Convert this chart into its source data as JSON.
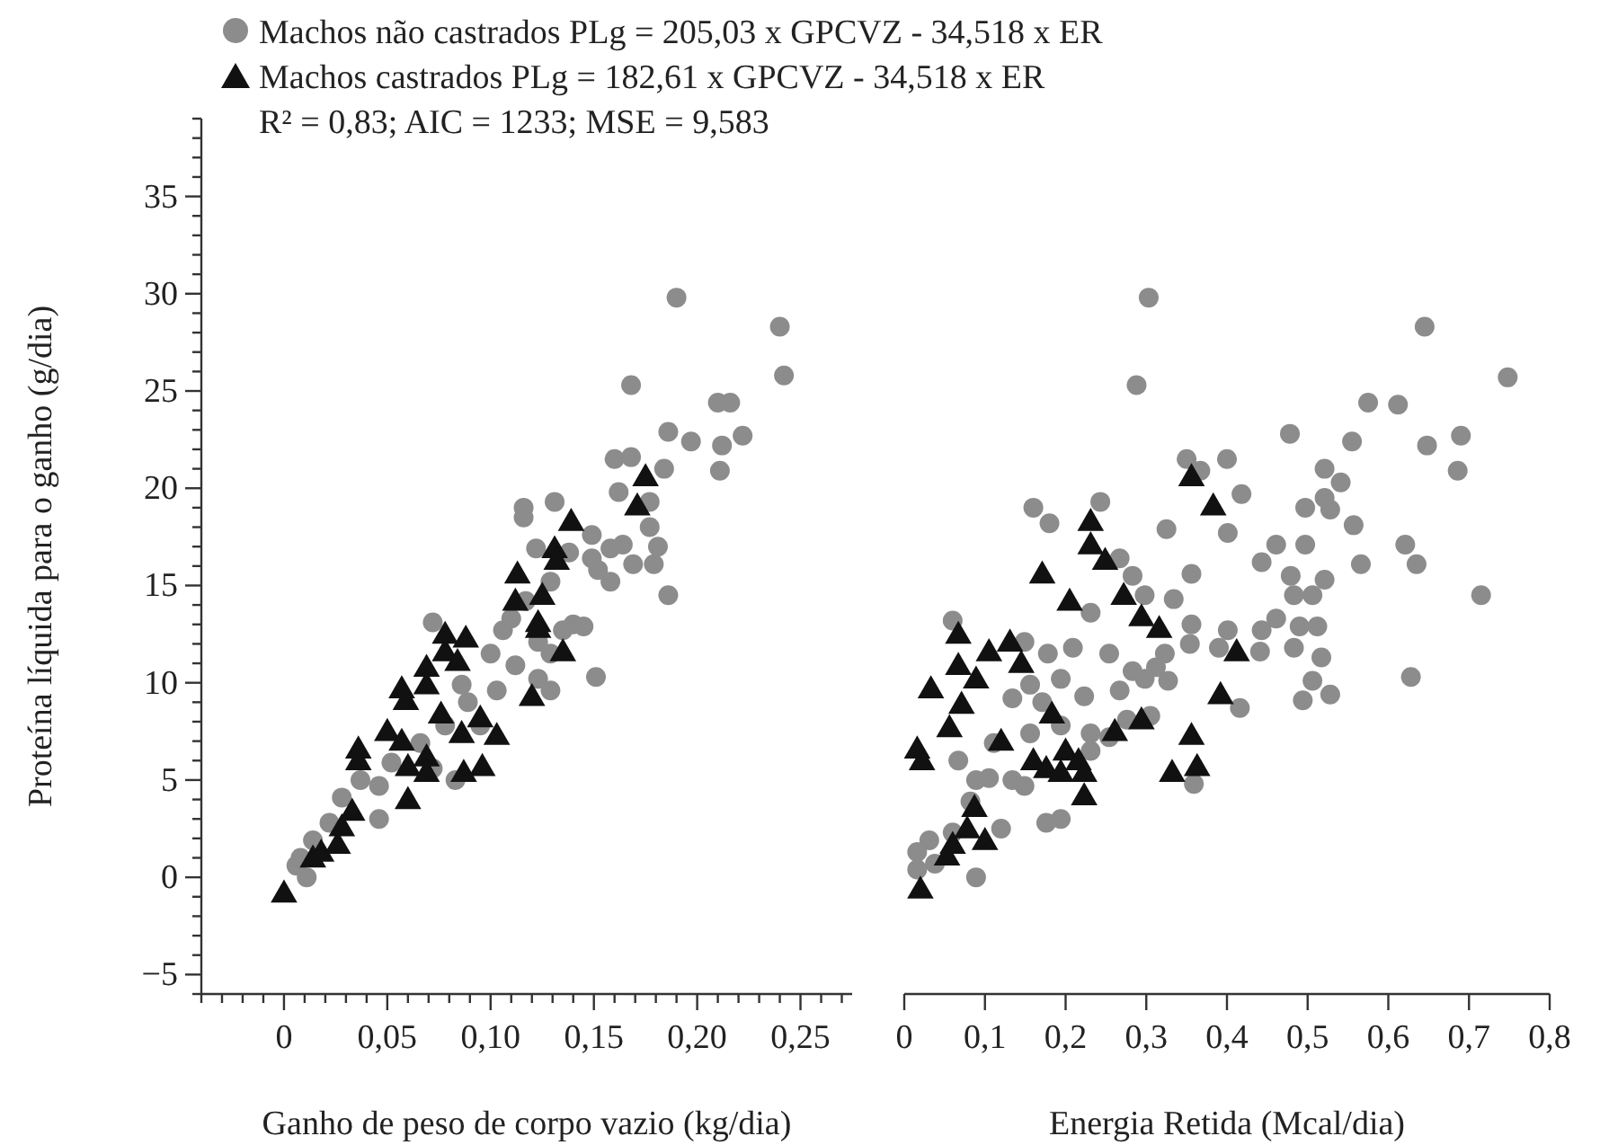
{
  "chart_data": [
    {
      "type": "scatter",
      "xlabel": "Ganho de peso de corpo vazio (kg/dia)",
      "ylabel": "Proteína líquida para o ganho (g/dia)",
      "legend": "top",
      "annotations": [
        "R² = 0,83; AIC = 1233; MSE = 9,583"
      ],
      "xlim": [
        -0.04,
        0.275
      ],
      "xticks": [
        {
          "value": -0.04,
          "label": null
        },
        {
          "value": -0.03,
          "label": null
        },
        {
          "value": -0.02,
          "label": null
        },
        {
          "value": -0.01,
          "label": null
        },
        0,
        {
          "value": 0.01,
          "label": null
        },
        {
          "value": 0.02,
          "label": null
        },
        {
          "value": 0.03,
          "label": null
        },
        {
          "value": 0.04,
          "label": null
        },
        {
          "value": 0.05,
          "label": "0,05"
        },
        {
          "value": 0.06,
          "label": null
        },
        {
          "value": 0.07,
          "label": null
        },
        {
          "value": 0.08,
          "label": null
        },
        {
          "value": 0.09,
          "label": null
        },
        {
          "value": 0.1,
          "label": "0,10"
        },
        {
          "value": 0.11,
          "label": null
        },
        {
          "value": 0.12,
          "label": null
        },
        {
          "value": 0.13,
          "label": null
        },
        {
          "value": 0.14,
          "label": null
        },
        {
          "value": 0.15,
          "label": "0,15"
        },
        {
          "value": 0.16,
          "label": null
        },
        {
          "value": 0.17,
          "label": null
        },
        {
          "value": 0.18,
          "label": null
        },
        {
          "value": 0.19,
          "label": null
        },
        {
          "value": 0.2,
          "label": "0,20"
        },
        {
          "value": 0.21,
          "label": null
        },
        {
          "value": 0.22,
          "label": null
        },
        {
          "value": 0.23,
          "label": null
        },
        {
          "value": 0.24,
          "label": null
        },
        {
          "value": 0.25,
          "label": "0,25"
        },
        {
          "value": 0.26,
          "label": null
        },
        {
          "value": 0.27,
          "label": null
        }
      ],
      "ylim": [
        -6,
        39
      ],
      "yticks": [
        {
          "value": -6,
          "label": null
        },
        {
          "value": -5,
          "label": "−5"
        },
        {
          "value": -4,
          "label": null
        },
        {
          "value": -3,
          "label": null
        },
        {
          "value": -2,
          "label": null
        },
        {
          "value": -1,
          "label": null
        },
        0,
        {
          "value": 1,
          "label": null
        },
        {
          "value": 2,
          "label": null
        },
        {
          "value": 3,
          "label": null
        },
        {
          "value": 4,
          "label": null
        },
        5,
        {
          "value": 6,
          "label": null
        },
        {
          "value": 7,
          "label": null
        },
        {
          "value": 8,
          "label": null
        },
        {
          "value": 9,
          "label": null
        },
        10,
        {
          "value": 11,
          "label": null
        },
        {
          "value": 12,
          "label": null
        },
        {
          "value": 13,
          "label": null
        },
        {
          "value": 14,
          "label": null
        },
        15,
        {
          "value": 16,
          "label": null
        },
        {
          "value": 17,
          "label": null
        },
        {
          "value": 18,
          "label": null
        },
        {
          "value": 19,
          "label": null
        },
        20,
        {
          "value": 21,
          "label": null
        },
        {
          "value": 22,
          "label": null
        },
        {
          "value": 23,
          "label": null
        },
        {
          "value": 24,
          "label": null
        },
        25,
        {
          "value": 26,
          "label": null
        },
        {
          "value": 27,
          "label": null
        },
        {
          "value": 28,
          "label": null
        },
        {
          "value": 29,
          "label": null
        },
        30,
        {
          "value": 31,
          "label": null
        },
        {
          "value": 32,
          "label": null
        },
        {
          "value": 33,
          "label": null
        },
        {
          "value": 34,
          "label": null
        },
        35,
        {
          "value": 36,
          "label": null
        },
        {
          "value": 37,
          "label": null
        },
        {
          "value": 38,
          "label": null
        },
        {
          "value": 39,
          "label": null
        }
      ],
      "series": [
        {
          "name": "Machos não castrados PLg = 205,03 x GPCVZ - 34,518 x ER",
          "color": "#8c8c8c",
          "marker": "circle",
          "x": [
            0.19,
            0.24,
            0.242,
            0.168,
            0.21,
            0.216,
            0.186,
            0.197,
            0.212,
            0.222,
            0.211,
            0.16,
            0.168,
            0.162,
            0.184,
            0.177,
            0.181,
            0.179,
            0.169,
            0.186,
            0.177,
            0.116,
            0.116,
            0.131,
            0.149,
            0.164,
            0.152,
            0.158,
            0.122,
            0.072,
            0.151,
            0.14,
            0.106,
            0.1,
            0.112,
            0.123,
            0.129,
            0.089,
            0.078,
            0.066,
            0.052,
            0.037,
            0.046,
            0.028,
            0.046,
            0.022,
            0.014,
            0.008,
            0.011,
            0.006,
            0.083,
            0.123,
            0.135,
            0.145,
            0.11,
            0.117,
            0.129,
            0.138,
            0.149,
            0.158,
            0.103,
            0.086,
            0.095,
            0.072,
            0.129
          ],
          "values": [
            29.8,
            28.3,
            25.8,
            25.3,
            24.4,
            24.4,
            22.9,
            22.4,
            22.2,
            22.7,
            20.9,
            21.5,
            21.6,
            19.8,
            21.0,
            19.3,
            17.0,
            16.1,
            16.1,
            14.5,
            18.0,
            19.0,
            18.5,
            19.3,
            17.6,
            17.1,
            15.8,
            15.2,
            16.9,
            13.1,
            10.3,
            13.0,
            12.7,
            11.5,
            10.9,
            10.2,
            9.6,
            9.0,
            7.8,
            6.9,
            5.9,
            5.0,
            4.7,
            4.1,
            3.0,
            2.8,
            1.9,
            1.0,
            0.0,
            0.6,
            5.0,
            12.1,
            12.7,
            12.9,
            13.3,
            14.2,
            15.2,
            16.7,
            16.4,
            16.9,
            9.6,
            9.9,
            7.8,
            5.6,
            11.5
          ]
        },
        {
          "name": "Machos castrados PLg = 182,61 x GPCVZ - 34,518 x ER",
          "color": "#111111",
          "marker": "triangle",
          "x": [
            0,
            0.014,
            0.018,
            0.026,
            0.028,
            0.033,
            0.036,
            0.036,
            0.05,
            0.057,
            0.059,
            0.057,
            0.06,
            0.06,
            0.069,
            0.069,
            0.078,
            0.078,
            0.088,
            0.084,
            0.069,
            0.069,
            0.076,
            0.086,
            0.095,
            0.103,
            0.087,
            0.096,
            0.113,
            0.112,
            0.125,
            0.123,
            0.123,
            0.131,
            0.132,
            0.139,
            0.135,
            0.12,
            0.175,
            0.171
          ],
          "values": [
            -0.9,
            0.9,
            1.2,
            1.6,
            2.5,
            3.3,
            6.5,
            5.9,
            7.4,
            9.6,
            9.0,
            6.9,
            5.6,
            3.9,
            10.7,
            9.8,
            12.4,
            11.5,
            12.2,
            11.0,
            6.1,
            5.3,
            8.3,
            7.3,
            8.1,
            7.2,
            5.3,
            5.6,
            15.5,
            14.1,
            14.4,
            13.0,
            12.7,
            16.8,
            16.2,
            18.2,
            11.5,
            9.2,
            20.5,
            19.0
          ]
        }
      ]
    },
    {
      "type": "scatter",
      "xlabel": "Energia Retida (Mcal/dia)",
      "tick_labels": "x",
      "xlim": [
        0,
        0.8
      ],
      "xticks": [
        0,
        {
          "value": 0.1,
          "label": "0,1"
        },
        {
          "value": 0.2,
          "label": "0,2"
        },
        {
          "value": 0.3,
          "label": "0,3"
        },
        {
          "value": 0.4,
          "label": "0,4"
        },
        {
          "value": 0.5,
          "label": "0,5"
        },
        {
          "value": 0.6,
          "label": "0,6"
        },
        {
          "value": 0.7,
          "label": "0,7"
        },
        {
          "value": 0.8,
          "label": "0,8"
        }
      ],
      "ylim": [
        -6,
        35
      ],
      "yticks": [
        -5,
        0,
        5,
        10,
        15,
        20,
        25,
        30,
        35
      ],
      "series": [
        {
          "color": "#8c8c8c",
          "marker": "circle",
          "x": [
            0.303,
            0.288,
            0.645,
            0.748,
            0.575,
            0.612,
            0.478,
            0.555,
            0.648,
            0.69,
            0.686,
            0.35,
            0.4,
            0.367,
            0.521,
            0.541,
            0.521,
            0.497,
            0.528,
            0.418,
            0.16,
            0.18,
            0.243,
            0.325,
            0.401,
            0.557,
            0.461,
            0.497,
            0.621,
            0.635,
            0.566,
            0.443,
            0.356,
            0.715,
            0.479,
            0.521,
            0.483,
            0.506,
            0.461,
            0.49,
            0.512,
            0.443,
            0.483,
            0.517,
            0.441,
            0.628,
            0.506,
            0.528,
            0.494,
            0.416,
            0.401,
            0.39,
            0.334,
            0.356,
            0.354,
            0.323,
            0.312,
            0.298,
            0.327,
            0.267,
            0.283,
            0.254,
            0.283,
            0.298,
            0.267,
            0.231,
            0.209,
            0.178,
            0.194,
            0.156,
            0.134,
            0.171,
            0.223,
            0.194,
            0.156,
            0.231,
            0.231,
            0.254,
            0.276,
            0.305,
            0.06,
            0.067,
            0.111,
            0.105,
            0.089,
            0.134,
            0.149,
            0.082,
            0.12,
            0.176,
            0.194,
            0.06,
            0.031,
            0.016,
            0.038,
            0.089,
            0.016,
            0.359,
            0.149
          ],
          "values": [
            29.8,
            25.3,
            28.3,
            25.7,
            24.4,
            24.3,
            22.8,
            22.4,
            22.2,
            22.7,
            20.9,
            21.5,
            21.5,
            20.9,
            21.0,
            20.3,
            19.5,
            19.0,
            18.9,
            19.7,
            19.0,
            18.2,
            19.3,
            17.9,
            17.7,
            18.1,
            17.1,
            17.1,
            17.1,
            16.1,
            16.1,
            16.2,
            15.6,
            14.5,
            15.5,
            15.3,
            14.5,
            14.5,
            13.3,
            12.9,
            12.9,
            12.7,
            11.8,
            11.3,
            11.6,
            10.3,
            10.1,
            9.4,
            9.1,
            8.7,
            12.7,
            11.8,
            14.3,
            13.0,
            12.0,
            11.5,
            10.8,
            10.2,
            10.1,
            9.6,
            10.6,
            11.5,
            15.5,
            14.5,
            16.4,
            13.6,
            11.8,
            11.5,
            10.2,
            9.9,
            9.2,
            9.0,
            9.3,
            7.8,
            7.4,
            7.4,
            6.5,
            7.2,
            8.1,
            8.3,
            13.2,
            6.0,
            6.9,
            5.1,
            5.0,
            5.0,
            4.7,
            3.9,
            2.5,
            2.8,
            3.0,
            2.3,
            1.9,
            1.3,
            0.7,
            0.0,
            0.4,
            4.8,
            12.1
          ]
        },
        {
          "color": "#111111",
          "marker": "triangle",
          "x": [
            0.02,
            0.053,
            0.06,
            0.078,
            0.087,
            0.1,
            0.016,
            0.022,
            0.033,
            0.056,
            0.067,
            0.067,
            0.071,
            0.089,
            0.105,
            0.131,
            0.145,
            0.12,
            0.171,
            0.16,
            0.176,
            0.183,
            0.194,
            0.2,
            0.216,
            0.223,
            0.223,
            0.205,
            0.231,
            0.231,
            0.249,
            0.272,
            0.294,
            0.316,
            0.261,
            0.294,
            0.356,
            0.383,
            0.412,
            0.392,
            0.356,
            0.332,
            0.363
          ],
          "values": [
            -0.7,
            1.0,
            1.6,
            2.4,
            3.5,
            1.8,
            6.5,
            5.9,
            9.6,
            7.6,
            12.4,
            10.8,
            8.8,
            10.1,
            11.5,
            12.0,
            10.9,
            6.9,
            15.5,
            5.9,
            5.5,
            8.3,
            5.3,
            6.4,
            5.9,
            5.3,
            4.1,
            14.1,
            18.2,
            17.0,
            16.2,
            14.4,
            13.3,
            12.7,
            7.4,
            8.0,
            20.5,
            19.0,
            11.5,
            9.3,
            7.2,
            5.3,
            5.6
          ]
        }
      ]
    }
  ]
}
